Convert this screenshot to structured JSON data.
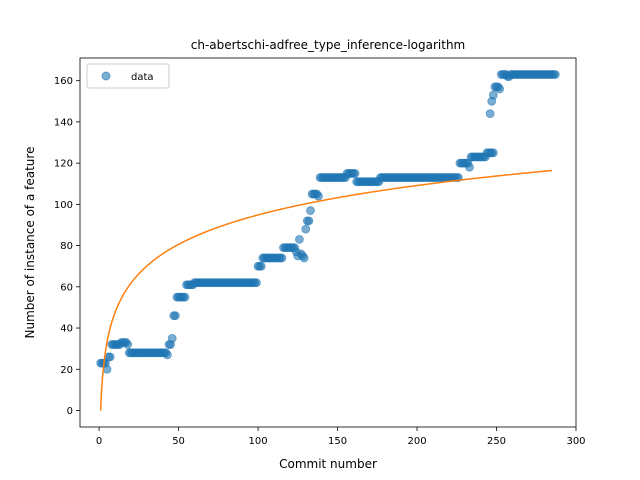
{
  "chart_data": {
    "type": "scatter",
    "title": "ch-abertschi-adfree_type_inference-logarithm",
    "xlabel": "Commit number",
    "ylabel": "Number of instance of a feature",
    "xlim": [
      -12,
      300
    ],
    "ylim": [
      -8,
      171
    ],
    "xticks": [
      0,
      50,
      100,
      150,
      200,
      250,
      300
    ],
    "yticks": [
      0,
      20,
      40,
      60,
      80,
      100,
      120,
      140,
      160
    ],
    "legend": {
      "position": "top-left",
      "entries": [
        "data"
      ]
    },
    "colors": {
      "data": "#1f77b4",
      "fit": "#ff7f0e"
    },
    "series": [
      {
        "name": "data",
        "kind": "scatter",
        "segments": [
          [
            1,
            4,
            23
          ],
          [
            5,
            5,
            20
          ],
          [
            6,
            7,
            26
          ],
          [
            8,
            13,
            32
          ],
          [
            14,
            17,
            33
          ],
          [
            18,
            18,
            32
          ],
          [
            19,
            42,
            28
          ],
          [
            43,
            43,
            27
          ],
          [
            44,
            45,
            32
          ],
          [
            46,
            46,
            35
          ],
          [
            47,
            48,
            46
          ],
          [
            49,
            54,
            55
          ],
          [
            55,
            59,
            61
          ],
          [
            60,
            99,
            62
          ],
          [
            100,
            102,
            70
          ],
          [
            103,
            115,
            74
          ],
          [
            116,
            123,
            79
          ],
          [
            124,
            124,
            77
          ],
          [
            125,
            125,
            75
          ],
          [
            126,
            126,
            83
          ],
          [
            127,
            127,
            76
          ],
          [
            128,
            128,
            75
          ],
          [
            129,
            129,
            74
          ],
          [
            130,
            130,
            88
          ],
          [
            131,
            132,
            92
          ],
          [
            133,
            133,
            97
          ],
          [
            134,
            137,
            105
          ],
          [
            138,
            138,
            104
          ],
          [
            139,
            155,
            113
          ],
          [
            156,
            161,
            115
          ],
          [
            162,
            176,
            111
          ],
          [
            177,
            226,
            113
          ],
          [
            227,
            232,
            120
          ],
          [
            233,
            233,
            118
          ],
          [
            234,
            243,
            123
          ],
          [
            244,
            248,
            125
          ],
          [
            246,
            246,
            144
          ],
          [
            247,
            247,
            150
          ],
          [
            248,
            248,
            153
          ],
          [
            249,
            251,
            157
          ],
          [
            252,
            252,
            156
          ],
          [
            253,
            256,
            163
          ],
          [
            257,
            258,
            162
          ],
          [
            259,
            287,
            163
          ]
        ]
      },
      {
        "name": "fit",
        "kind": "line",
        "model": "y = a*ln(x)",
        "a": 20.6,
        "x_range": [
          1,
          285
        ]
      }
    ]
  }
}
